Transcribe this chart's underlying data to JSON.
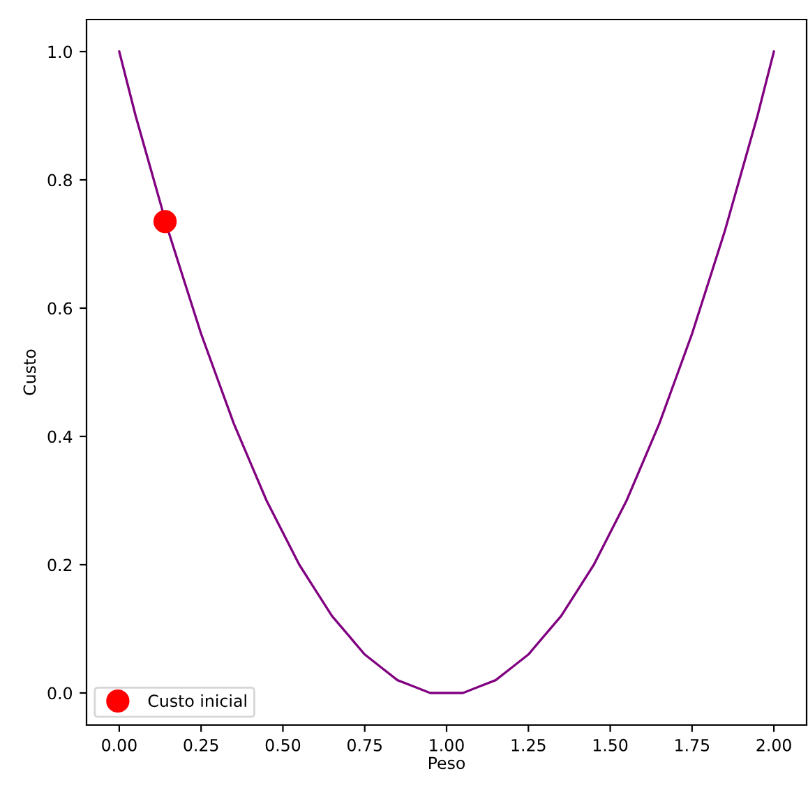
{
  "chart_data": {
    "type": "line",
    "xlabel": "Peso",
    "ylabel": "Custo",
    "xlim": [
      -0.1,
      2.1
    ],
    "ylim": [
      -0.05,
      1.05
    ],
    "xticks": [
      {
        "value": 0,
        "label": "0.00"
      },
      {
        "value": 0.25,
        "label": "0.25"
      },
      {
        "value": 0.5,
        "label": "0.50"
      },
      {
        "value": 0.75,
        "label": "0.75"
      },
      {
        "value": 1,
        "label": "1.00"
      },
      {
        "value": 1.25,
        "label": "1.25"
      },
      {
        "value": 1.5,
        "label": "1.50"
      },
      {
        "value": 1.75,
        "label": "1.75"
      },
      {
        "value": 2,
        "label": "2.00"
      }
    ],
    "yticks": [
      {
        "value": 0,
        "label": "0.0"
      },
      {
        "value": 0.2,
        "label": "0.2"
      },
      {
        "value": 0.4,
        "label": "0.4"
      },
      {
        "value": 0.6,
        "label": "0.6"
      },
      {
        "value": 0.8,
        "label": "0.8"
      },
      {
        "value": 1,
        "label": "1.0"
      }
    ],
    "grid": false,
    "legend": "lower left",
    "series": [
      {
        "color": "#800080",
        "x": [
          0,
          0.05,
          0.1,
          0.15,
          0.2,
          0.25,
          0.3,
          0.35,
          0.4,
          0.45,
          0.5,
          0.55,
          0.6,
          0.65,
          0.7,
          0.75,
          0.8,
          0.85,
          0.9,
          0.95,
          1.0,
          1.05,
          1.1,
          1.15,
          1.2,
          1.25,
          1.3,
          1.35,
          1.4,
          1.45,
          1.5,
          1.55,
          1.6,
          1.65,
          1.7,
          1.75,
          1.8,
          1.85,
          1.9,
          1.95,
          2.0
        ],
        "values": [
          1.0,
          0.9,
          0.81,
          0.72,
          0.64,
          0.56,
          0.49,
          0.42,
          0.36,
          0.3,
          0.25,
          0.2,
          0.16,
          0.12,
          0.09,
          0.06,
          0.04,
          0.02,
          0.01,
          0.0,
          0.0,
          0.0,
          0.01,
          0.02,
          0.04,
          0.06,
          0.09,
          0.12,
          0.16,
          0.2,
          0.25,
          0.3,
          0.36,
          0.42,
          0.49,
          0.56,
          0.64,
          0.72,
          0.81,
          0.9,
          1.0
        ]
      },
      {
        "type": "scatter",
        "name": "Custo inicial",
        "color": "#ff0000",
        "marker": "circle",
        "x": [
          0.14
        ],
        "values": [
          0.735
        ]
      }
    ]
  }
}
